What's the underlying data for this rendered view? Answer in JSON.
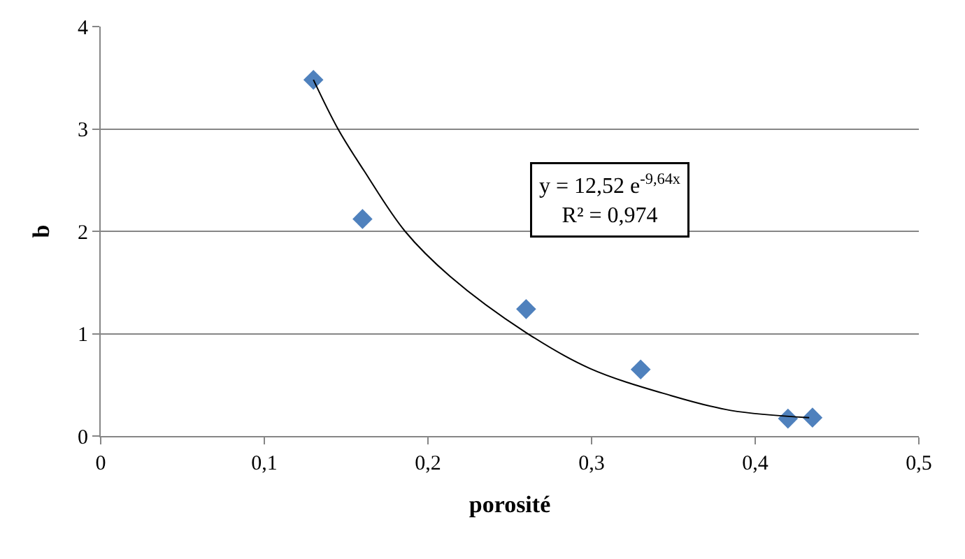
{
  "chart_data": {
    "type": "scatter",
    "xlabel": "porosité",
    "ylabel": "b",
    "x": [
      0.13,
      0.16,
      0.26,
      0.33,
      0.42,
      0.435
    ],
    "series": [
      {
        "color": "#4f81bd",
        "marker": "diamond",
        "values": [
          3.48,
          2.12,
          1.24,
          0.65,
          0.17,
          0.18
        ]
      },
      {
        "type": "line",
        "color": "#000000",
        "marker": "none",
        "x": [
          0.13,
          0.145,
          0.161,
          0.186,
          0.2135,
          0.26,
          0.299,
          0.3475,
          0.385,
          0.433
        ],
        "values": [
          3.48,
          3.0,
          2.59,
          2.0,
          1.56,
          1.01,
          0.66,
          0.4,
          0.25,
          0.18
        ]
      }
    ],
    "annotations": [
      "y = 12,52 e$^{-9,64x}$\nR² = 0,974"
    ],
    "xlim": [
      0,
      0.5
    ],
    "xticks": [
      0,
      {
        "value": 0.1,
        "label": "0,1"
      },
      {
        "value": 0.2,
        "label": "0,2"
      },
      {
        "value": 0.3,
        "label": "0,3"
      },
      {
        "value": 0.4,
        "label": "0,4"
      },
      {
        "value": 0.5,
        "label": "0,5"
      }
    ],
    "ylim": [
      0,
      4
    ],
    "yticks": [
      0,
      1,
      2,
      3,
      4
    ],
    "grid": "y",
    "legend": false
  }
}
